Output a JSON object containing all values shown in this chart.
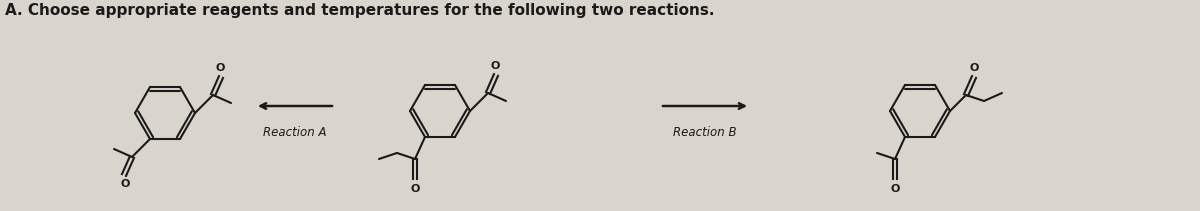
{
  "title": "A. Choose appropriate reagents and temperatures for the following two reactions.",
  "title_fontsize": 11,
  "bg_color": "#d9d5cc",
  "line_color": "#1a1a1a",
  "text_color": "#1a1a1a",
  "reaction_a_label": "Reaction A",
  "reaction_b_label": "Reaction B",
  "figsize": [
    12.0,
    2.11
  ],
  "dpi": 100
}
